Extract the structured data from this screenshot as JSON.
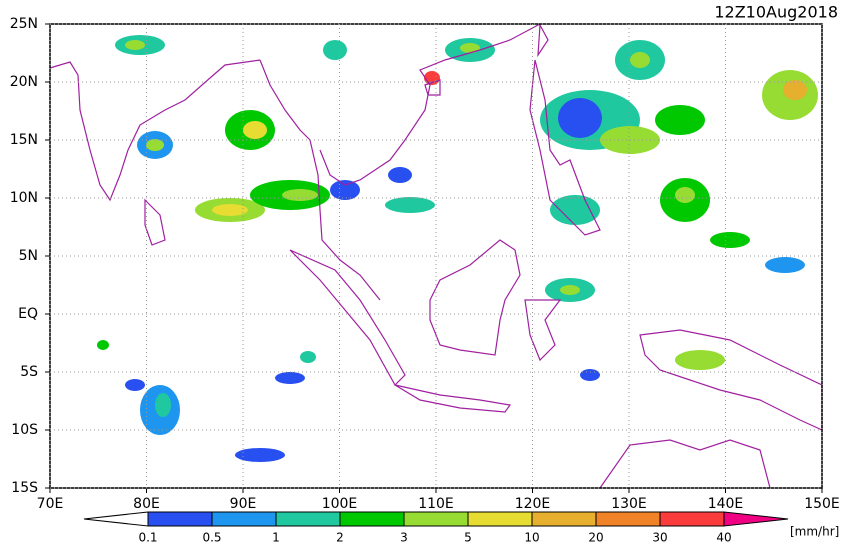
{
  "title": "12Z10Aug2018",
  "lon_range": [
    70,
    150
  ],
  "lat_range": [
    -15,
    25
  ],
  "lon_ticks": [
    {
      "value": 70,
      "label": "70E"
    },
    {
      "value": 80,
      "label": "80E"
    },
    {
      "value": 90,
      "label": "90E"
    },
    {
      "value": 100,
      "label": "100E"
    },
    {
      "value": 110,
      "label": "110E"
    },
    {
      "value": 120,
      "label": "120E"
    },
    {
      "value": 130,
      "label": "130E"
    },
    {
      "value": 140,
      "label": "140E"
    },
    {
      "value": 150,
      "label": "150E"
    }
  ],
  "lat_ticks": [
    {
      "value": 25,
      "label": "25N"
    },
    {
      "value": 20,
      "label": "20N"
    },
    {
      "value": 15,
      "label": "15N"
    },
    {
      "value": 10,
      "label": "10N"
    },
    {
      "value": 5,
      "label": "5N"
    },
    {
      "value": 0,
      "label": "EQ"
    },
    {
      "value": -5,
      "label": "5S"
    },
    {
      "value": -10,
      "label": "10S"
    },
    {
      "value": -15,
      "label": "15S"
    }
  ],
  "colorbar": {
    "levels": [
      0.1,
      0.5,
      1,
      2,
      3,
      5,
      10,
      20,
      30,
      40
    ],
    "colors": [
      "#ffffff",
      "#2850f0",
      "#1e96f0",
      "#20c8a0",
      "#00c800",
      "#96dc32",
      "#e6dc32",
      "#e6af2d",
      "#f08228",
      "#fa3c3c",
      "#f00082"
    ],
    "unit": "[mm/hr]"
  }
}
